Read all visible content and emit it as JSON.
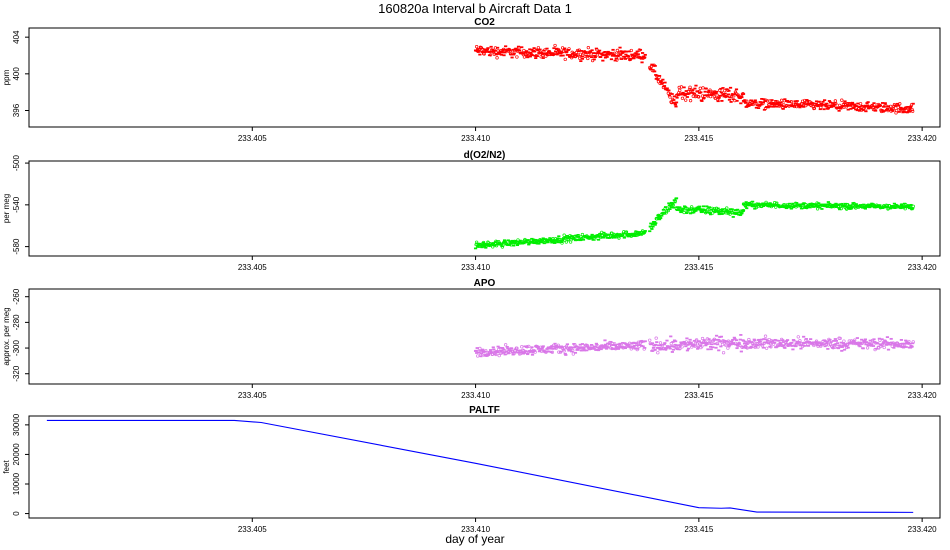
{
  "figure": {
    "title": "160820a   Interval b Aircraft Data 1",
    "xlabel": "day of year"
  },
  "chart_data": [
    {
      "type": "scatter",
      "title": "CO2",
      "ylabel": "ppm",
      "color": "#ff0000",
      "xlim": [
        233.4,
        233.4204
      ],
      "ylim": [
        394.2,
        405.0
      ],
      "xticks": [
        233.405,
        233.41,
        233.415,
        233.42
      ],
      "xtick_labels": [
        "233.405",
        "233.410",
        "233.415",
        "233.420"
      ],
      "yticks": [
        396,
        400,
        404
      ],
      "ytick_labels": [
        "396",
        "400",
        "404"
      ],
      "series": [
        {
          "segments": [
            {
              "x": [
                233.41,
                233.4138
              ],
              "y": [
                402.5,
                402.0
              ],
              "noise": 0.9
            },
            {
              "x": [
                233.4139,
                233.4145
              ],
              "y": [
                401.0,
                396.5
              ],
              "noise": 1.0
            },
            {
              "x": [
                233.4145,
                233.416
              ],
              "y": [
                398.0,
                397.6
              ],
              "noise": 1.2
            },
            {
              "x": [
                233.416,
                233.4198
              ],
              "y": [
                396.8,
                396.2
              ],
              "noise": 0.8
            }
          ]
        }
      ]
    },
    {
      "type": "scatter",
      "title": "d(O2/N2)",
      "ylabel": "per meg",
      "color": "#00ee00",
      "xlim": [
        233.4,
        233.4204
      ],
      "ylim": [
        -589,
        -498
      ],
      "xticks": [
        233.405,
        233.41,
        233.415,
        233.42
      ],
      "xtick_labels": [
        "233.405",
        "233.410",
        "233.415",
        "233.420"
      ],
      "yticks": [
        -580,
        -540,
        -500
      ],
      "ytick_labels": [
        "-580",
        "-540",
        "-500"
      ],
      "series": [
        {
          "segments": [
            {
              "x": [
                233.41,
                233.4138
              ],
              "y": [
                -579.0,
                -567.0
              ],
              "noise": 4.5
            },
            {
              "x": [
                233.4139,
                233.4145
              ],
              "y": [
                -562.0,
                -535.0
              ],
              "noise": 7.0
            },
            {
              "x": [
                233.4145,
                233.416
              ],
              "y": [
                -544.0,
                -547.0
              ],
              "noise": 6.0
            },
            {
              "x": [
                233.416,
                233.4198
              ],
              "y": [
                -540.0,
                -542.0
              ],
              "noise": 4.0
            }
          ]
        }
      ]
    },
    {
      "type": "scatter",
      "title": "APO",
      "ylabel": "approx. per meg",
      "color": "#d977e8",
      "xlim": [
        233.4,
        233.4204
      ],
      "ylim": [
        -328,
        -254
      ],
      "xticks": [
        233.405,
        233.41,
        233.415,
        233.42
      ],
      "xtick_labels": [
        "233.405",
        "233.410",
        "233.415",
        "233.420"
      ],
      "yticks": [
        -320,
        -300,
        -280,
        -260
      ],
      "ytick_labels": [
        "-320",
        "-300",
        "-280",
        "-260"
      ],
      "series": [
        {
          "segments": [
            {
              "x": [
                233.41,
                233.4138
              ],
              "y": [
                -303.0,
                -298.0
              ],
              "noise": 5.5
            },
            {
              "x": [
                233.4139,
                233.416
              ],
              "y": [
                -298.0,
                -296.0
              ],
              "noise": 8.0
            },
            {
              "x": [
                233.416,
                233.4198
              ],
              "y": [
                -296.0,
                -297.0
              ],
              "noise": 6.5
            }
          ]
        }
      ]
    },
    {
      "type": "line",
      "title": "PALTF",
      "ylabel": "feet",
      "color": "#0000ff",
      "xlim": [
        233.4,
        233.4204
      ],
      "ylim": [
        -1500,
        33000
      ],
      "xticks": [
        233.405,
        233.41,
        233.415,
        233.42
      ],
      "xtick_labels": [
        "233.405",
        "233.410",
        "233.415",
        "233.420"
      ],
      "yticks": [
        0,
        10000,
        20000,
        30000
      ],
      "ytick_labels": [
        "0",
        "10000",
        "20000",
        "30000"
      ],
      "series": [
        {
          "x": [
            233.4004,
            233.4046,
            233.4052,
            233.41,
            233.415,
            233.4155,
            233.4157,
            233.4163,
            233.4198
          ],
          "y": [
            31500,
            31500,
            30800,
            17000,
            2000,
            1800,
            1900,
            500,
            400
          ]
        }
      ]
    }
  ]
}
